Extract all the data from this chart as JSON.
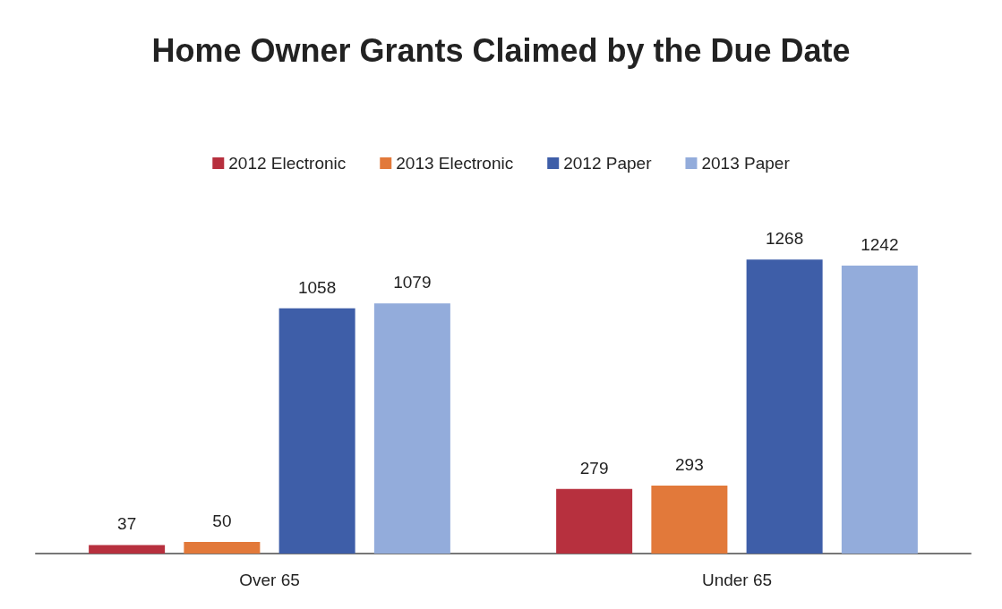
{
  "chart_data": {
    "type": "bar",
    "title": "Home Owner Grants Claimed by the Due Date",
    "categories": [
      "Over 65",
      "Under 65"
    ],
    "series": [
      {
        "name": "2012 Electronic",
        "color": "#b7303e",
        "values": [
          37,
          279
        ]
      },
      {
        "name": "2013 Electronic",
        "color": "#e2793a",
        "values": [
          50,
          293
        ]
      },
      {
        "name": "2012 Paper",
        "color": "#3e5ea8",
        "values": [
          1058,
          1268
        ]
      },
      {
        "name": "2013 Paper",
        "color": "#93acdb",
        "values": [
          1079,
          1242
        ]
      }
    ],
    "data_labels": true,
    "legend": "top"
  }
}
